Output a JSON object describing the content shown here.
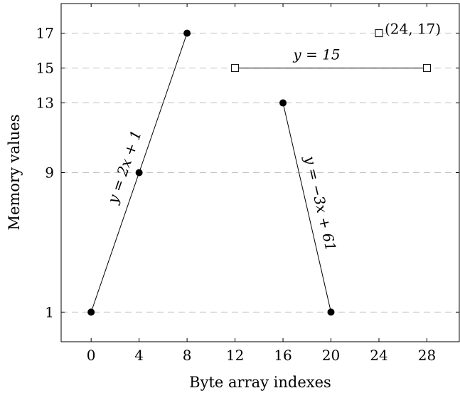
{
  "chart_data": {
    "type": "line",
    "xlabel": "Byte array indexes",
    "ylabel": "Memory values",
    "xticks": [
      0,
      4,
      8,
      12,
      16,
      20,
      24,
      28
    ],
    "yticks": [
      1,
      9,
      13,
      15,
      17
    ],
    "xlim": [
      -2.5,
      30.7
    ],
    "ylim": [
      -0.7,
      18.7
    ],
    "grid": "horizontal-dashed",
    "series": [
      {
        "marker": "circle",
        "points": [
          [
            0,
            1
          ],
          [
            4,
            9
          ],
          [
            8,
            17
          ]
        ],
        "label": "y = 2x + 1"
      },
      {
        "marker": "circle",
        "points": [
          [
            16,
            13
          ],
          [
            20,
            1
          ]
        ],
        "label": "y = −3x + 61"
      },
      {
        "marker": "square",
        "points": [
          [
            12,
            15
          ],
          [
            28,
            15
          ]
        ],
        "label": "y = 15"
      },
      {
        "marker": "square",
        "points": [
          [
            24,
            17
          ]
        ],
        "label": "(24, 17)"
      }
    ]
  }
}
